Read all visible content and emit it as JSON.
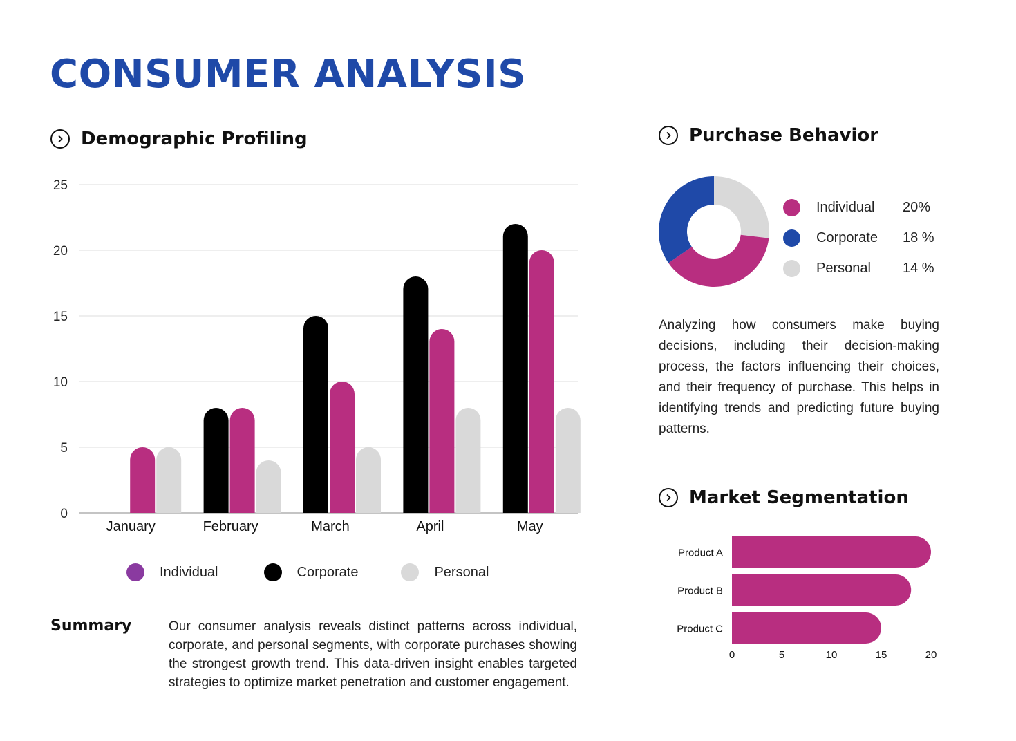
{
  "page": {
    "title": "CONSUMER ANALYSIS",
    "summary_label": "Summary",
    "summary_text": "Our consumer analysis reveals distinct patterns across individual, corporate, and personal segments, with corporate purchases showing the strongest growth trend. This data-driven insight enables targeted strategies to optimize market penetration and customer engagement."
  },
  "sections": {
    "demographic": "Demographic Profiling",
    "purchase": "Purchase Behavior",
    "segmentation": "Market Segmentation"
  },
  "purchase_behavior": {
    "description": "Analyzing how consumers make buying decisions, including their decision-making process, the factors influencing their choices, and their frequency of purchase. This helps in identifying trends and predicting future buying patterns."
  },
  "icons": {
    "section": "chevron-circle-icon"
  },
  "colors": {
    "title": "#1f49a8",
    "individual": "#b82e80",
    "corporate": "#000000",
    "personal": "#d9d9d9",
    "corporate_pie": "#1f49a8",
    "legend_individual": "#8a3aa0"
  },
  "chart_data": [
    {
      "type": "bar",
      "categories": [
        "January",
        "February",
        "March",
        "April",
        "May"
      ],
      "series": [
        {
          "name": "Individual",
          "values": [
            5,
            8,
            10,
            14,
            20
          ]
        },
        {
          "name": "Corporate",
          "values": [
            0,
            8,
            15,
            18,
            22
          ]
        },
        {
          "name": "Personal",
          "values": [
            5,
            4,
            5,
            8,
            8
          ]
        }
      ],
      "yticks": [
        0,
        5,
        10,
        15,
        20,
        25
      ],
      "ylim": [
        0,
        25
      ],
      "grid": true,
      "legend_position": "bottom"
    },
    {
      "type": "pie",
      "labels": [
        "Individual",
        "Corporate",
        "Personal"
      ],
      "values": [
        20,
        18,
        14
      ],
      "value_labels": [
        "20%",
        "18 %",
        "14 %"
      ],
      "donut": true,
      "legend_position": "right"
    },
    {
      "type": "bar",
      "orientation": "horizontal",
      "categories": [
        "Product A",
        "Product B",
        "Product C"
      ],
      "values": [
        20,
        18,
        15
      ],
      "xticks": [
        0,
        5,
        10,
        15,
        20
      ],
      "xlim": [
        0,
        20
      ]
    }
  ]
}
